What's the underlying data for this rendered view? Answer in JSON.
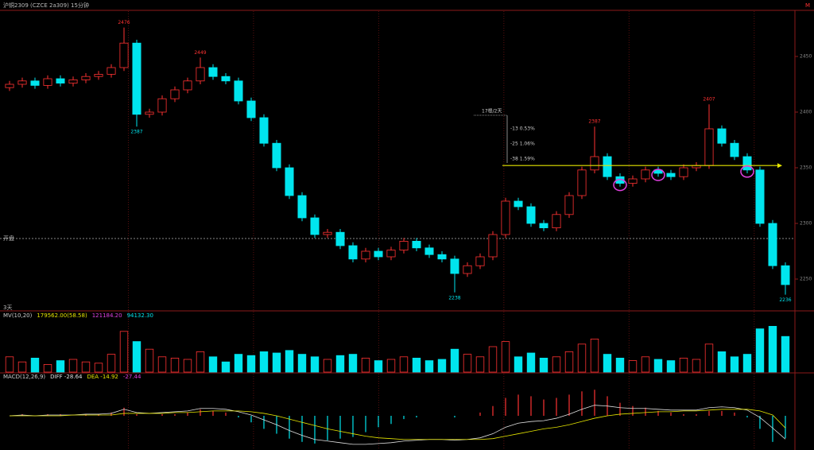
{
  "chart_data": {
    "type": "candlestick",
    "header": "沪铜2309 (CZCE 2a309) 15分钟",
    "corner_mark": "M",
    "open_line_label": "开盘",
    "span_label": "3天",
    "measure_labels": [
      "17根/2天",
      "-13  0.53%",
      "-25  1.06%",
      "-38  1.59%"
    ],
    "up_color": "#ff3232",
    "down_color": "#00e5ee",
    "open": [
      2422,
      2425,
      2428,
      2424,
      2430,
      2426,
      2429,
      2432,
      2434,
      2440,
      2462,
      2398,
      2400,
      2412,
      2420,
      2428,
      2440,
      2432,
      2428,
      2410,
      2395,
      2372,
      2350,
      2325,
      2305,
      2290,
      2292,
      2280,
      2268,
      2275,
      2270,
      2276,
      2284,
      2278,
      2272,
      2268,
      2255,
      2262,
      2270,
      2290,
      2320,
      2315,
      2300,
      2296,
      2308,
      2325,
      2348,
      2360,
      2342,
      2336,
      2340,
      2348,
      2345,
      2342,
      2350,
      2352,
      2385,
      2372,
      2360,
      2348,
      2300,
      2262
    ],
    "high": [
      2428,
      2431,
      2431,
      2433,
      2433,
      2432,
      2435,
      2437,
      2443,
      2476,
      2465,
      2403,
      2415,
      2423,
      2431,
      2449,
      2443,
      2435,
      2431,
      2413,
      2398,
      2375,
      2353,
      2328,
      2308,
      2295,
      2295,
      2283,
      2278,
      2278,
      2279,
      2287,
      2287,
      2281,
      2275,
      2271,
      2265,
      2273,
      2293,
      2323,
      2323,
      2318,
      2303,
      2311,
      2328,
      2351,
      2387,
      2363,
      2345,
      2343,
      2351,
      2351,
      2348,
      2353,
      2355,
      2407,
      2388,
      2375,
      2363,
      2351,
      2303,
      2265
    ],
    "low": [
      2419,
      2422,
      2421,
      2421,
      2423,
      2423,
      2426,
      2429,
      2431,
      2437,
      2387,
      2395,
      2397,
      2409,
      2417,
      2425,
      2429,
      2425,
      2407,
      2392,
      2369,
      2347,
      2322,
      2302,
      2287,
      2287,
      2277,
      2265,
      2265,
      2267,
      2267,
      2273,
      2275,
      2269,
      2265,
      2238,
      2252,
      2259,
      2267,
      2287,
      2312,
      2297,
      2293,
      2293,
      2305,
      2322,
      2345,
      2339,
      2333,
      2333,
      2337,
      2342,
      2339,
      2339,
      2347,
      2349,
      2369,
      2357,
      2345,
      2297,
      2259,
      2236
    ],
    "close": [
      2425,
      2428,
      2424,
      2430,
      2426,
      2429,
      2432,
      2434,
      2440,
      2462,
      2398,
      2400,
      2412,
      2420,
      2428,
      2440,
      2432,
      2428,
      2410,
      2395,
      2372,
      2350,
      2325,
      2305,
      2290,
      2292,
      2280,
      2268,
      2275,
      2270,
      2276,
      2284,
      2278,
      2272,
      2268,
      2255,
      2262,
      2270,
      2290,
      2320,
      2315,
      2300,
      2296,
      2308,
      2325,
      2348,
      2360,
      2342,
      2336,
      2340,
      2348,
      2345,
      2342,
      2350,
      2352,
      2385,
      2372,
      2360,
      2348,
      2300,
      2262,
      2245
    ],
    "high_labels": [
      null,
      null,
      null,
      null,
      null,
      null,
      null,
      null,
      null,
      "2476",
      null,
      null,
      null,
      null,
      null,
      "2449",
      null,
      null,
      null,
      null,
      null,
      null,
      null,
      null,
      null,
      null,
      null,
      null,
      null,
      null,
      null,
      null,
      null,
      null,
      null,
      null,
      null,
      null,
      null,
      null,
      null,
      null,
      null,
      null,
      null,
      null,
      "2387",
      null,
      null,
      null,
      null,
      null,
      null,
      null,
      null,
      "2407",
      null,
      null,
      null,
      null,
      null,
      null
    ],
    "low_labels": [
      null,
      null,
      null,
      null,
      null,
      null,
      null,
      null,
      null,
      null,
      "2387",
      null,
      null,
      null,
      null,
      null,
      null,
      null,
      null,
      null,
      null,
      null,
      null,
      null,
      null,
      null,
      null,
      null,
      null,
      null,
      null,
      null,
      null,
      null,
      null,
      "2238",
      null,
      null,
      null,
      null,
      null,
      null,
      null,
      null,
      null,
      null,
      null,
      null,
      null,
      null,
      null,
      null,
      null,
      null,
      null,
      null,
      null,
      null,
      null,
      null,
      null,
      "2236"
    ],
    "ylim": [
      2225,
      2485
    ],
    "yticks": [
      2250,
      2300,
      2350,
      2400,
      2450
    ],
    "trend_line": {
      "value": 2352,
      "color": "#e6e600"
    },
    "volume": {
      "legend": [
        "MV(10,20)",
        "179562.00(58.58)",
        "121184.20",
        "94132.30"
      ],
      "values": [
        60000,
        40000,
        55000,
        30000,
        45000,
        50000,
        40000,
        35000,
        70000,
        160000,
        120000,
        90000,
        60000,
        55000,
        50000,
        80000,
        60000,
        40000,
        70000,
        65000,
        80000,
        75000,
        85000,
        70000,
        60000,
        50000,
        65000,
        70000,
        55000,
        45000,
        50000,
        60000,
        55000,
        45000,
        50000,
        90000,
        70000,
        60000,
        100000,
        120000,
        60000,
        75000,
        55000,
        60000,
        80000,
        110000,
        130000,
        70000,
        55000,
        45000,
        60000,
        50000,
        45000,
        55000,
        50000,
        110000,
        80000,
        60000,
        70000,
        170000,
        180000,
        140000
      ],
      "ylim": [
        0,
        200000
      ]
    },
    "macd": {
      "legend": [
        "MACD(12,26,9)",
        "DIFF -28.64",
        "DEA -14.92",
        "-27.44"
      ],
      "ylim": [
        -40,
        40
      ],
      "dif": [
        0,
        1,
        0,
        1,
        1,
        1,
        2,
        2,
        3,
        8,
        4,
        3,
        4,
        5,
        6,
        9,
        9,
        8,
        5,
        1,
        -5,
        -11,
        -18,
        -24,
        -29,
        -31,
        -33,
        -35,
        -35,
        -34,
        -33,
        -31,
        -30,
        -29,
        -29,
        -30,
        -29,
        -27,
        -22,
        -14,
        -9,
        -7,
        -6,
        -3,
        2,
        8,
        13,
        12,
        10,
        9,
        9,
        8,
        7,
        7,
        7,
        10,
        11,
        10,
        7,
        -2,
        -15,
        -28.64
      ],
      "dea": [
        0,
        0,
        0,
        0,
        0,
        1,
        1,
        1,
        1,
        3,
        3,
        3,
        3,
        4,
        4,
        5,
        6,
        6,
        6,
        5,
        3,
        0,
        -4,
        -8,
        -12,
        -16,
        -19,
        -22,
        -25,
        -27,
        -28,
        -29,
        -29,
        -29,
        -29,
        -29,
        -29,
        -29,
        -28,
        -25,
        -22,
        -19,
        -16,
        -14,
        -11,
        -7,
        -3,
        0,
        2,
        3,
        4,
        5,
        5,
        6,
        6,
        7,
        8,
        8,
        8,
        6,
        1,
        -14.92
      ],
      "hist": [
        0,
        2,
        0,
        2,
        2,
        0,
        2,
        2,
        4,
        10,
        2,
        0,
        2,
        2,
        4,
        8,
        6,
        4,
        -2,
        -8,
        -16,
        -22,
        -28,
        -32,
        -34,
        -30,
        -28,
        -26,
        -20,
        -14,
        -10,
        -4,
        -2,
        0,
        0,
        -2,
        0,
        4,
        12,
        22,
        26,
        24,
        20,
        22,
        26,
        30,
        32,
        24,
        16,
        12,
        10,
        6,
        4,
        2,
        2,
        6,
        6,
        4,
        -2,
        -16,
        -32,
        -27.44
      ],
      "dif_color": "#e0e0e0",
      "dea_color": "#e6e600"
    }
  }
}
